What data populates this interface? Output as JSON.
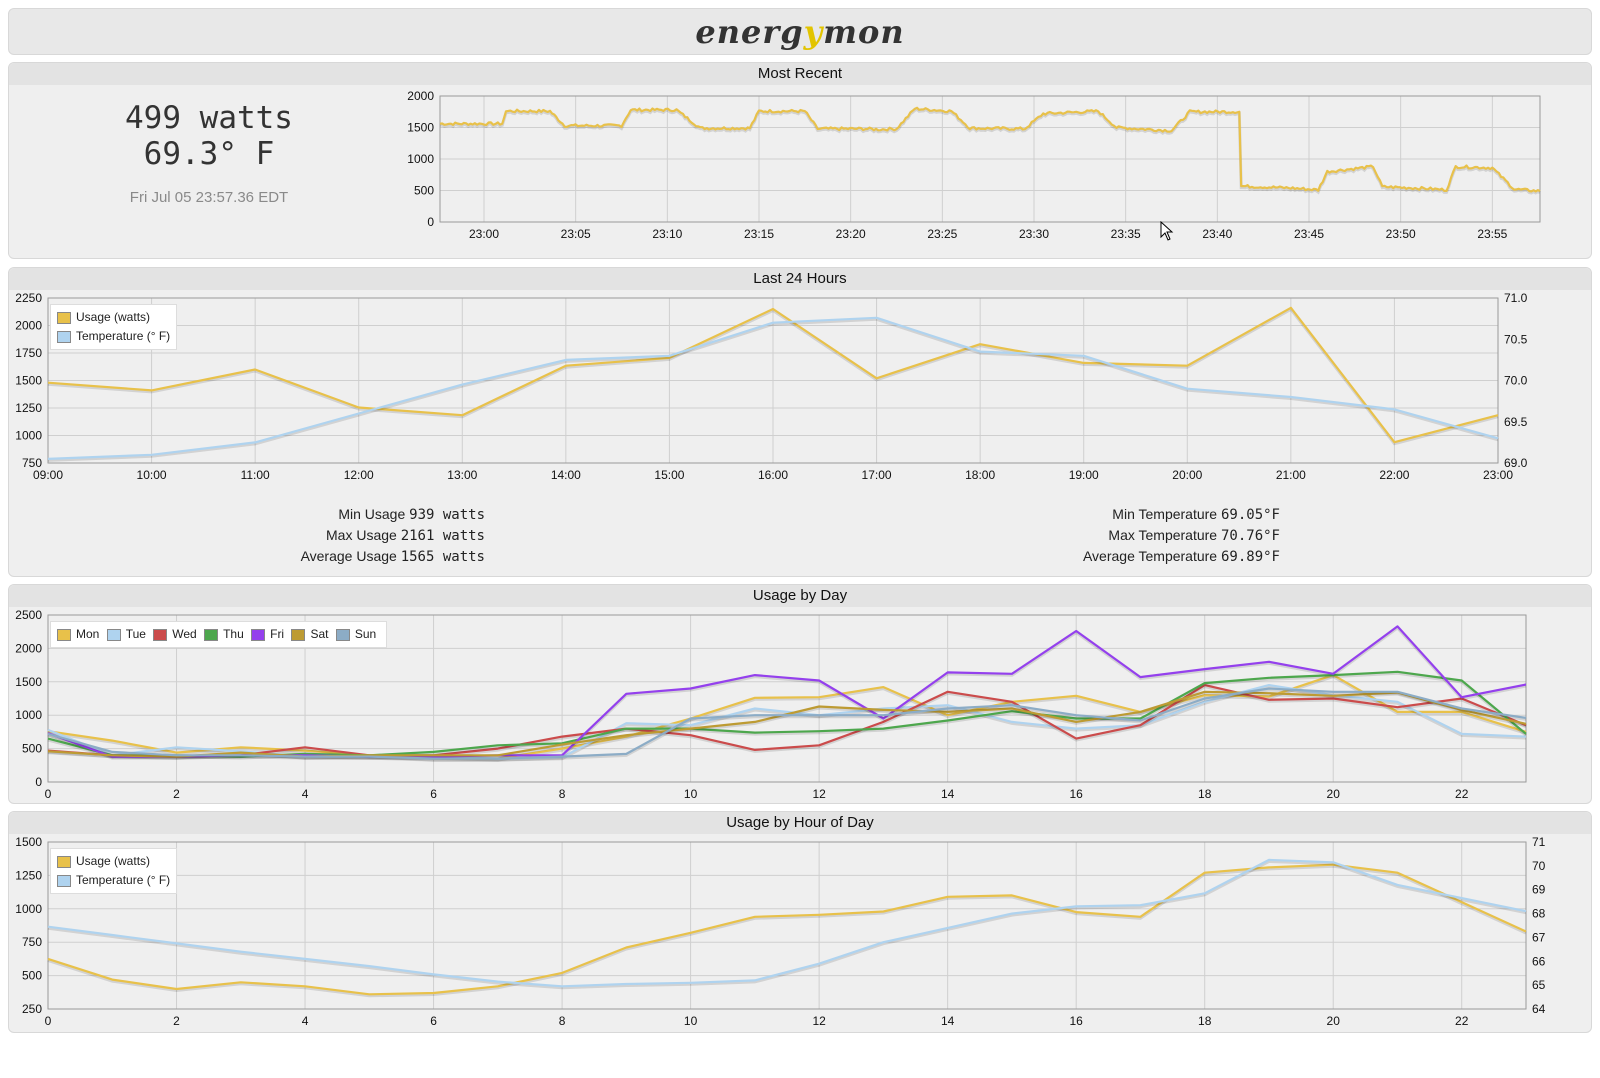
{
  "logo": {
    "prefix": "energ",
    "y": "y",
    "suffix": "mon"
  },
  "most_recent": {
    "title": "Most Recent",
    "usage": "499 watts",
    "temperature": "69.3° F",
    "timestamp": "Fri Jul 05 23:57.36 EDT"
  },
  "last24": {
    "title": "Last 24 Hours",
    "stats": {
      "min_usage_label": "Min Usage",
      "min_usage": "939 watts",
      "max_usage_label": "Max Usage",
      "max_usage": "2161 watts",
      "avg_usage_label": "Average Usage",
      "avg_usage": "1565 watts",
      "min_temp_label": "Min Temperature",
      "min_temp": "69.05°F",
      "max_temp_label": "Max Temperature",
      "max_temp": "70.76°F",
      "avg_temp_label": "Average Temperature",
      "avg_temp": "69.89°F"
    }
  },
  "usage_by_day": {
    "title": "Usage by Day"
  },
  "usage_by_hour": {
    "title": "Usage by Hour of Day"
  },
  "colors": {
    "usage": "#e8c14a",
    "temperature": "#afd3ef",
    "mon": "#e8c14a",
    "tue": "#afd3ef",
    "wed": "#cb4b4b",
    "thu": "#4da74d",
    "fri": "#9440ed",
    "sat": "#bd9b33",
    "sun": "#8cacc6"
  },
  "chart_data": [
    {
      "id": "recent",
      "type": "line",
      "x_ticks": [
        "23:00",
        "23:05",
        "23:10",
        "23:15",
        "23:20",
        "23:25",
        "23:30",
        "23:35",
        "23:40",
        "23:45",
        "23:50",
        "23:55"
      ],
      "xlim": [
        "22:57.6",
        "23:57.6"
      ],
      "ylim": [
        0,
        2000
      ],
      "y_ticks": [
        0,
        500,
        1000,
        1500,
        2000
      ],
      "grid": true,
      "series": [
        {
          "color_key": "usage",
          "noise": 45,
          "levels": [
            [
              "22:57.6",
              1560
            ],
            [
              "22:59.5",
              1560
            ],
            [
              "23:00",
              1560
            ],
            [
              "23:01",
              1560
            ],
            [
              "23:01.2",
              1760
            ],
            [
              "23:03.6",
              1760
            ],
            [
              "23:04.4",
              1530
            ],
            [
              "23:07.5",
              1530
            ],
            [
              "23:08",
              1780
            ],
            [
              "23:10.5",
              1780
            ],
            [
              "23:11.8",
              1490
            ],
            [
              "23:14.5",
              1490
            ],
            [
              "23:15",
              1760
            ],
            [
              "23:17.5",
              1760
            ],
            [
              "23:18.2",
              1480
            ],
            [
              "23:20.8",
              1480
            ],
            [
              "23:21.5",
              1470
            ],
            [
              "23:22.5",
              1480
            ],
            [
              "23:23.5",
              1800
            ],
            [
              "23:25.5",
              1760
            ],
            [
              "23:26.5",
              1490
            ],
            [
              "23:29.5",
              1480
            ],
            [
              "23:30.5",
              1720
            ],
            [
              "23:33.5",
              1760
            ],
            [
              "23:34.5",
              1500
            ],
            [
              "23:37.5",
              1450
            ],
            [
              "23:38.5",
              1750
            ],
            [
              "23:41.2",
              1750
            ],
            [
              "23:41.3",
              570
            ],
            [
              "23:44",
              540
            ],
            [
              "23:45.5",
              510
            ],
            [
              "23:46",
              800
            ],
            [
              "23:48.5",
              880
            ],
            [
              "23:49",
              560
            ],
            [
              "23:51.5",
              530
            ],
            [
              "23:52.5",
              510
            ],
            [
              "23:53",
              880
            ],
            [
              "23:55",
              860
            ],
            [
              "23:56.2",
              520
            ],
            [
              "23:57.6",
              490
            ]
          ]
        }
      ]
    },
    {
      "id": "last24",
      "type": "line",
      "x_ticks": [
        "09:00",
        "10:00",
        "11:00",
        "12:00",
        "13:00",
        "14:00",
        "15:00",
        "16:00",
        "17:00",
        "18:00",
        "19:00",
        "20:00",
        "21:00",
        "22:00",
        "23:00"
      ],
      "ylim": [
        750,
        2250
      ],
      "y_ticks": [
        750,
        1000,
        1250,
        1500,
        1750,
        2000,
        2250
      ],
      "y2lim": [
        69.0,
        71.0
      ],
      "y2_ticks": [
        "69.0",
        "69.5",
        "70.0",
        "70.5",
        "71.0"
      ],
      "grid": true,
      "legend": "top-left",
      "series": [
        {
          "name": "Usage (watts)",
          "color_key": "usage",
          "axis": "y",
          "values": [
            1480,
            1410,
            1600,
            1255,
            1185,
            1635,
            1705,
            2150,
            1520,
            1830,
            1660,
            1635,
            2161,
            939,
            1185
          ]
        },
        {
          "name": "Temperature (° F)",
          "color_key": "temperature",
          "axis": "y2",
          "values": [
            69.05,
            69.1,
            69.25,
            69.6,
            69.95,
            70.25,
            70.3,
            70.7,
            70.76,
            70.35,
            70.3,
            69.9,
            69.8,
            69.65,
            69.3
          ]
        }
      ]
    },
    {
      "id": "byday",
      "type": "line",
      "x_ticks": [
        0,
        2,
        4,
        6,
        8,
        10,
        12,
        14,
        16,
        18,
        20,
        22
      ],
      "xlim": [
        0,
        23
      ],
      "ylim": [
        0,
        2500
      ],
      "y_ticks": [
        0,
        500,
        1000,
        1500,
        2000,
        2500
      ],
      "grid": true,
      "legend": "top-left",
      "series": [
        {
          "name": "Mon",
          "color_key": "mon",
          "values": [
            760,
            620,
            440,
            520,
            470,
            400,
            350,
            350,
            500,
            680,
            950,
            1260,
            1270,
            1420,
            1000,
            1200,
            1290,
            1050,
            1300,
            1280,
            1600,
            1050,
            1050,
            750
          ]
        },
        {
          "name": "Tue",
          "color_key": "tue",
          "values": [
            780,
            400,
            520,
            460,
            380,
            380,
            380,
            350,
            370,
            880,
            850,
            1100,
            1000,
            1100,
            1150,
            900,
            800,
            850,
            1200,
            1450,
            1300,
            1200,
            720,
            680
          ]
        },
        {
          "name": "Wed",
          "color_key": "wed",
          "values": [
            470,
            400,
            380,
            400,
            520,
            400,
            400,
            500,
            680,
            800,
            700,
            480,
            550,
            900,
            1350,
            1200,
            650,
            850,
            1450,
            1230,
            1250,
            1120,
            1250,
            850
          ]
        },
        {
          "name": "Thu",
          "color_key": "thu",
          "values": [
            650,
            400,
            400,
            380,
            420,
            400,
            450,
            550,
            580,
            800,
            800,
            740,
            760,
            800,
            920,
            1060,
            950,
            950,
            1480,
            1560,
            1600,
            1650,
            1520,
            720
          ]
        },
        {
          "name": "Fri",
          "color_key": "fri",
          "values": [
            730,
            380,
            380,
            400,
            400,
            380,
            380,
            400,
            400,
            1320,
            1400,
            1600,
            1520,
            950,
            1640,
            1620,
            2260,
            1570,
            1690,
            1800,
            1620,
            2330,
            1270,
            1460
          ]
        },
        {
          "name": "Sat",
          "color_key": "sat",
          "values": [
            460,
            400,
            380,
            440,
            380,
            400,
            400,
            400,
            560,
            700,
            800,
            900,
            1130,
            1080,
            1050,
            1100,
            900,
            1050,
            1350,
            1330,
            1290,
            1340,
            1080,
            870
          ]
        },
        {
          "name": "Sun",
          "color_key": "sun",
          "values": [
            720,
            450,
            400,
            400,
            380,
            380,
            350,
            350,
            380,
            420,
            950,
            1000,
            1000,
            1000,
            1100,
            1150,
            1000,
            920,
            1250,
            1400,
            1350,
            1350,
            1100,
            960
          ]
        }
      ]
    },
    {
      "id": "byhour",
      "type": "line",
      "x_ticks": [
        0,
        2,
        4,
        6,
        8,
        10,
        12,
        14,
        16,
        18,
        20,
        22
      ],
      "xlim": [
        0,
        23
      ],
      "ylim": [
        250,
        1500
      ],
      "y_ticks": [
        250,
        500,
        750,
        1000,
        1250,
        1500
      ],
      "y2lim": [
        64,
        71
      ],
      "y2_ticks": [
        "64",
        "65",
        "66",
        "67",
        "68",
        "69",
        "70",
        "71"
      ],
      "grid": true,
      "legend": "top-left",
      "series": [
        {
          "name": "Usage (watts)",
          "color_key": "usage",
          "axis": "y",
          "values": [
            625,
            470,
            400,
            450,
            420,
            360,
            370,
            420,
            520,
            710,
            820,
            940,
            955,
            980,
            1090,
            1100,
            975,
            940,
            1270,
            1310,
            1330,
            1270,
            1050,
            830
          ]
        },
        {
          "name": "Temperature (° F)",
          "color_key": "temperature",
          "axis": "y2",
          "values": [
            67.45,
            67.1,
            66.75,
            66.4,
            66.1,
            65.8,
            65.45,
            65.15,
            64.95,
            65.05,
            65.1,
            65.2,
            65.9,
            66.8,
            67.4,
            68.0,
            68.3,
            68.35,
            68.85,
            70.25,
            70.15,
            69.2,
            68.65,
            68.1
          ]
        }
      ]
    }
  ]
}
